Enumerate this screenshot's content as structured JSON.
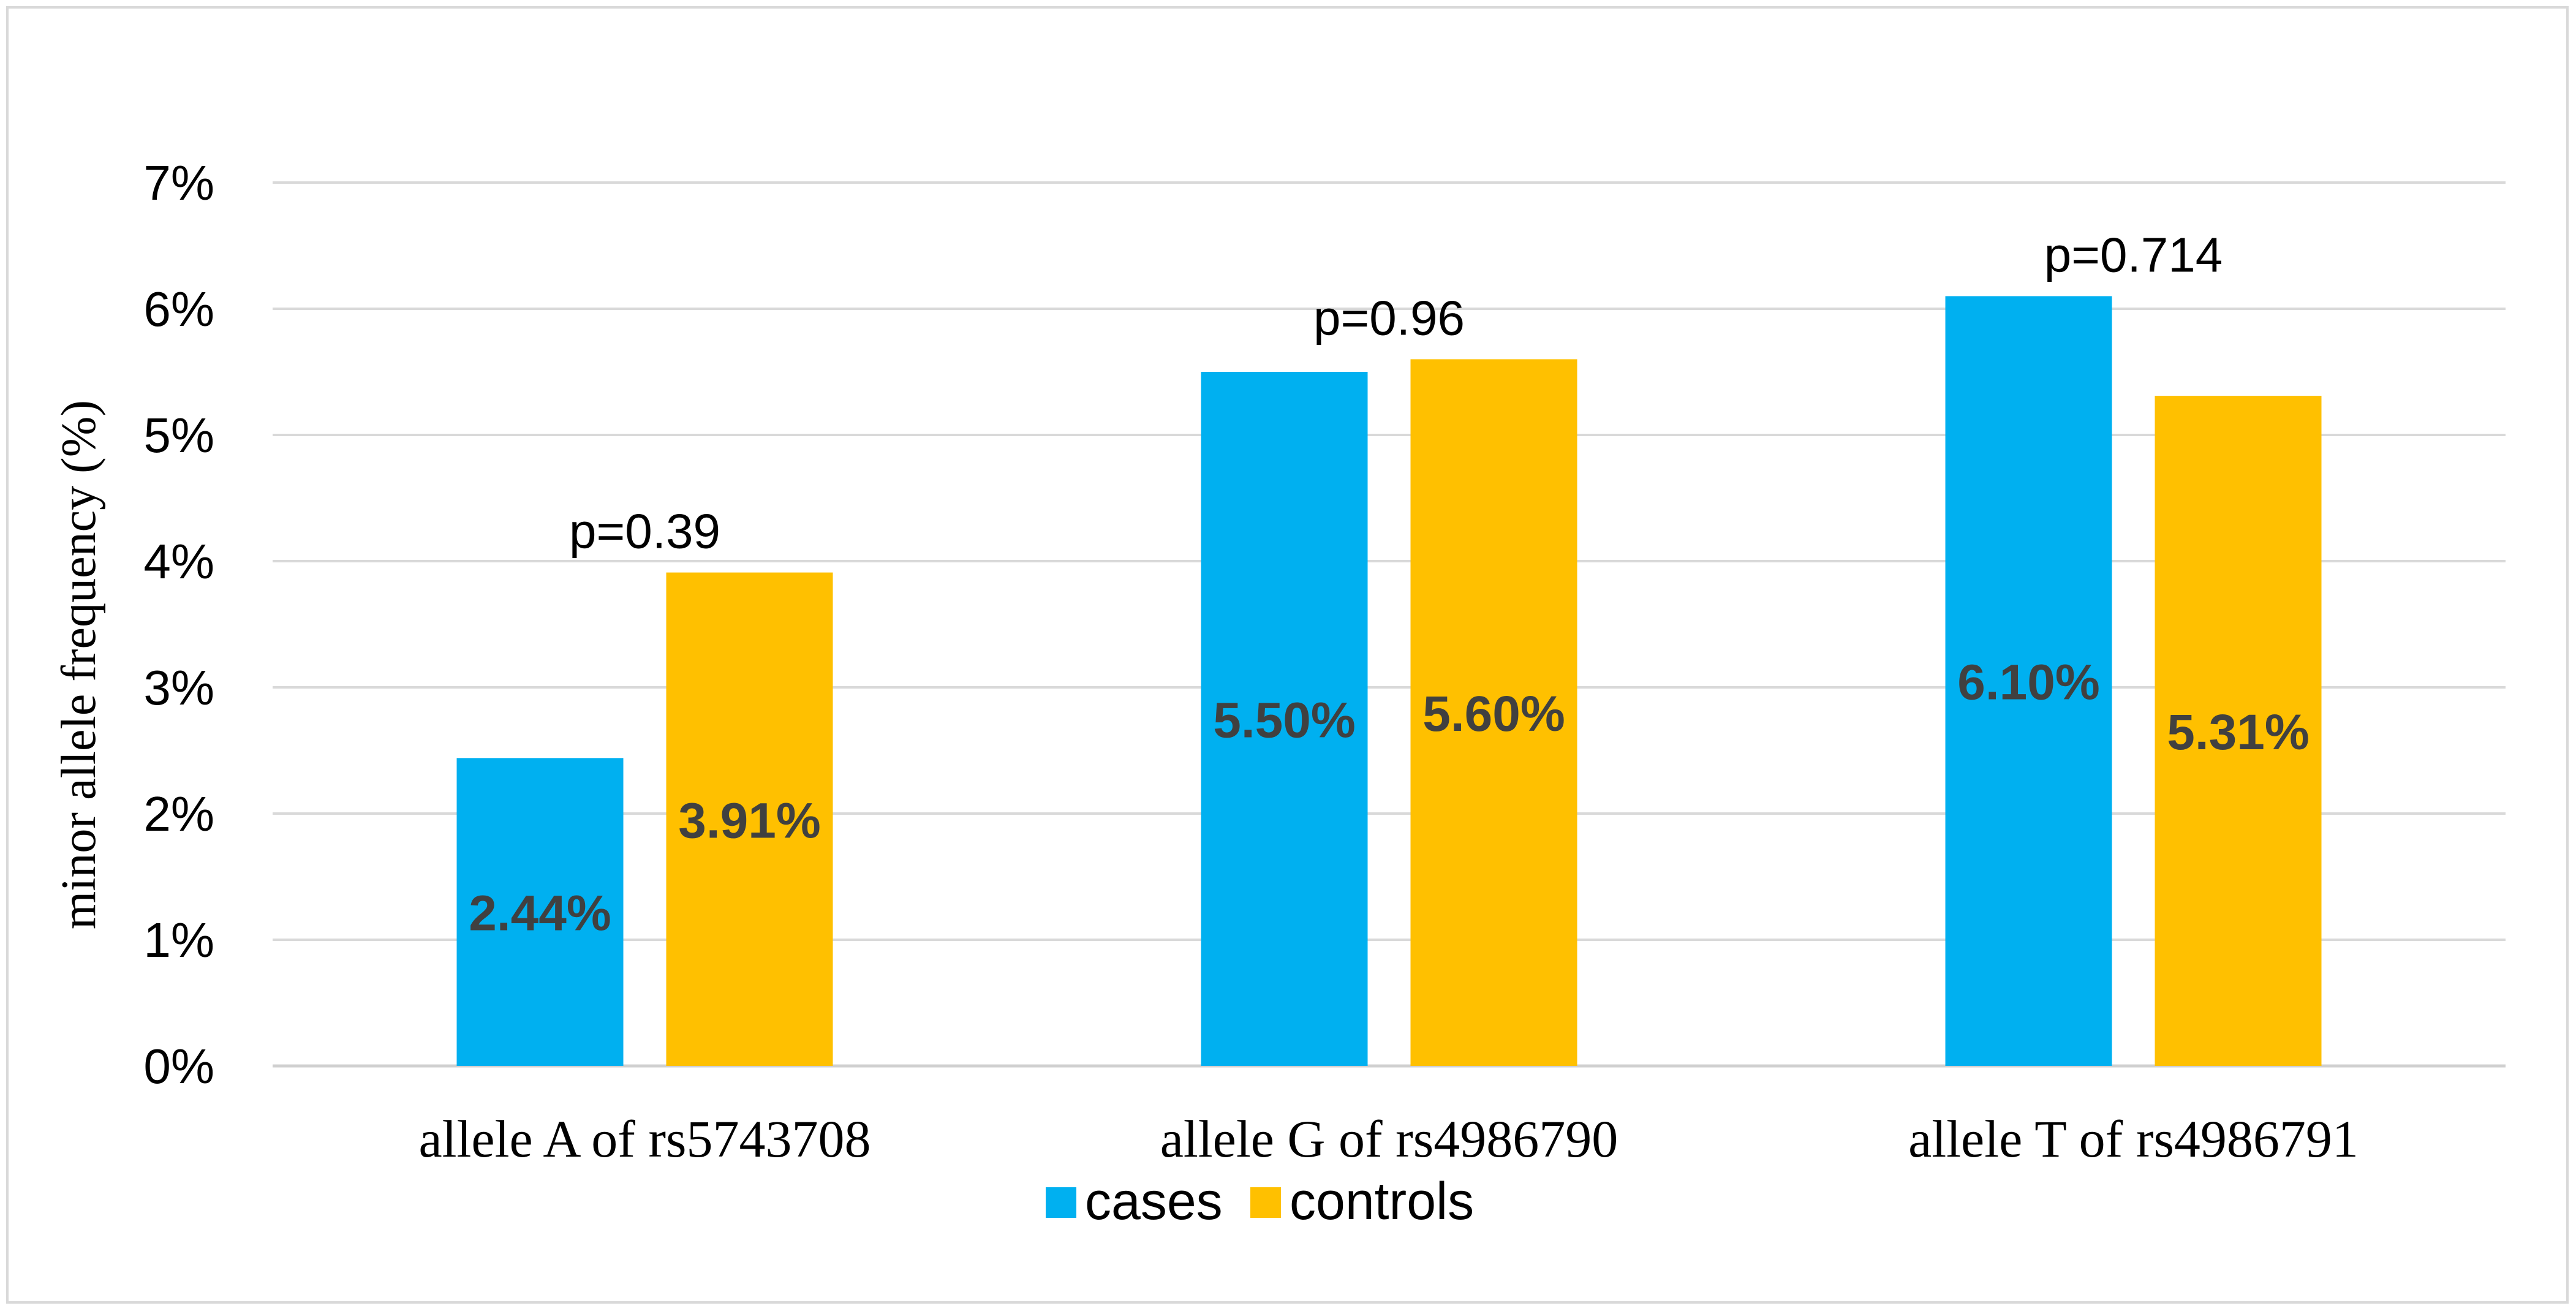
{
  "chart_data": {
    "type": "bar",
    "title": "",
    "xlabel": "",
    "ylabel": "minor allele frequency (%)",
    "ylim": [
      0,
      7
    ],
    "yticks": [
      "0%",
      "1%",
      "2%",
      "3%",
      "4%",
      "5%",
      "6%",
      "7%"
    ],
    "grid": true,
    "legend_position": "bottom",
    "categories": [
      "allele A of rs5743708",
      "allele G of rs4986790",
      "allele T of rs4986791"
    ],
    "series": [
      {
        "name": "cases",
        "color": "#00b0f0",
        "values": [
          2.44,
          5.5,
          6.1
        ],
        "labels": [
          "2.44%",
          "5.50%",
          "6.10%"
        ]
      },
      {
        "name": "controls",
        "color": "#ffc000",
        "values": [
          3.91,
          5.6,
          5.31
        ],
        "labels": [
          "3.91%",
          "5.60%",
          "5.31%"
        ]
      }
    ],
    "annotations": [
      "p=0.39",
      "p=0.96",
      "p=0.714"
    ]
  }
}
